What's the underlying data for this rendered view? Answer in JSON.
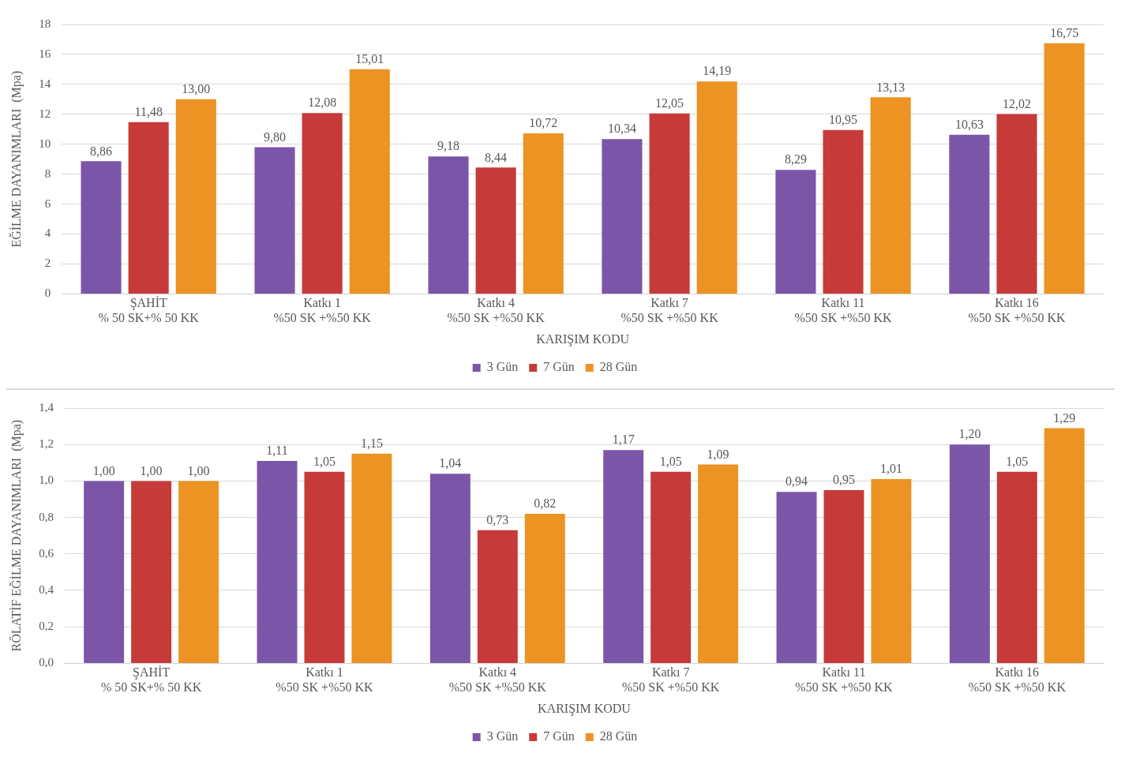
{
  "chart_data": [
    {
      "type": "bar",
      "xlabel": "KARIŞIM KODU",
      "ylabel": "EĞİLME DAYANIMLARI  (Mpa)",
      "categories": [
        "ŞAHİT\n% 50 SK+% 50 KK",
        "Katkı 1\n%50 SK +%50 KK",
        "Katkı 4\n%50 SK +%50 KK",
        "Katkı 7\n%50 SK +%50 KK",
        "Katkı 11\n%50 SK +%50 KK",
        "Katkı 16\n%50 SK +%50 KK"
      ],
      "series": [
        {
          "name": "3 Gün",
          "color": "#7b56a8",
          "values": [
            8.86,
            9.8,
            9.18,
            10.34,
            8.29,
            10.63
          ],
          "value_labels": [
            "8,86",
            "9,80",
            "9,18",
            "10,34",
            "8,29",
            "10,63"
          ]
        },
        {
          "name": "7 Gün",
          "color": "#c63a3a",
          "values": [
            11.48,
            12.08,
            8.44,
            12.05,
            10.95,
            12.02
          ],
          "value_labels": [
            "11,48",
            "12,08",
            "8,44",
            "12,05",
            "10,95",
            "12,02"
          ]
        },
        {
          "name": "28 Gün",
          "color": "#ec9323",
          "values": [
            13.0,
            15.01,
            10.72,
            14.19,
            13.13,
            16.75
          ],
          "value_labels": [
            "13,00",
            "15,01",
            "10,72",
            "14,19",
            "13,13",
            "16,75"
          ]
        }
      ],
      "ylim": [
        0,
        18
      ],
      "yticks": [
        0,
        2,
        4,
        6,
        8,
        10,
        12,
        14,
        16,
        18
      ],
      "grid": "y",
      "legend": "bottom",
      "marker": "square"
    },
    {
      "type": "bar",
      "xlabel": "KARIŞIM KODU",
      "ylabel": "RÖLATİF EĞİLME DAYANIMLARI  (Mpa)",
      "categories": [
        "ŞAHİT\n% 50 SK+% 50 KK",
        "Katkı 1\n%50 SK +%50 KK",
        "Katkı 4\n%50 SK +%50 KK",
        "Katkı 7\n%50 SK +%50 KK",
        "Katkı 11\n%50 SK +%50 KK",
        "Katkı 16\n%50 SK +%50 KK"
      ],
      "series": [
        {
          "name": "3 Gün",
          "color": "#7b56a8",
          "values": [
            1.0,
            1.11,
            1.04,
            1.17,
            0.94,
            1.2
          ],
          "value_labels": [
            "1,00",
            "1,11",
            "1,04",
            "1,17",
            "0,94",
            "1,20"
          ]
        },
        {
          "name": "7 Gün",
          "color": "#c63a3a",
          "values": [
            1.0,
            1.05,
            0.73,
            1.05,
            0.95,
            1.05
          ],
          "value_labels": [
            "1,00",
            "1,05",
            "0,73",
            "1,05",
            "0,95",
            "1,05"
          ]
        },
        {
          "name": "28 Gün",
          "color": "#ec9323",
          "values": [
            1.0,
            1.15,
            0.82,
            1.09,
            1.01,
            1.29
          ],
          "value_labels": [
            "1,00",
            "1,15",
            "0,82",
            "1,09",
            "1,01",
            "1,29"
          ]
        }
      ],
      "ylim": [
        0,
        1.4
      ],
      "yticks": [
        {
          "value": 0,
          "label": "0,0"
        },
        {
          "value": 0.2,
          "label": "0,2"
        },
        {
          "value": 0.4,
          "label": "0,4"
        },
        {
          "value": 0.6,
          "label": "0,6"
        },
        {
          "value": 0.8,
          "label": "0,8"
        },
        {
          "value": 1.0,
          "label": "1,0"
        },
        {
          "value": 1.2,
          "label": "1,2"
        },
        {
          "value": 1.4,
          "label": "1,4"
        }
      ],
      "grid": "y",
      "legend": "bottom",
      "marker": "square"
    }
  ]
}
